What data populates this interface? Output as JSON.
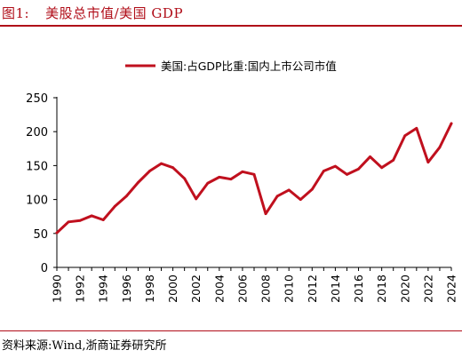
{
  "header": {
    "figure_number": "图1:",
    "title": "美股总市值/美国 GDP"
  },
  "footer": {
    "source": "资料来源:Wind,浙商证券研究所"
  },
  "colors": {
    "accent": "#b00d18",
    "line": "#c0101e",
    "axis": "#000000"
  },
  "chart_data": {
    "type": "line",
    "title": "",
    "xlabel": "",
    "ylabel": "",
    "legend_position": "top-center",
    "grid": false,
    "ylim": [
      0,
      250
    ],
    "yticks": [
      0,
      50,
      100,
      150,
      200,
      250
    ],
    "xlim": [
      1990,
      2024
    ],
    "xticks": [
      1990,
      1992,
      1994,
      1996,
      1998,
      2000,
      2002,
      2004,
      2006,
      2008,
      2010,
      2012,
      2014,
      2016,
      2018,
      2020,
      2022,
      2024
    ],
    "series": [
      {
        "name": "美国:占GDP比重:国内上市公司市值",
        "color": "#c0101e",
        "x": [
          1990,
          1991,
          1992,
          1993,
          1994,
          1995,
          1996,
          1997,
          1998,
          1999,
          2000,
          2001,
          2002,
          2003,
          2004,
          2005,
          2006,
          2007,
          2008,
          2009,
          2010,
          2011,
          2012,
          2013,
          2014,
          2015,
          2016,
          2017,
          2018,
          2019,
          2020,
          2021,
          2022,
          2023,
          2024
        ],
        "values": [
          51,
          67,
          69,
          76,
          70,
          90,
          105,
          125,
          142,
          153,
          147,
          131,
          101,
          124,
          133,
          130,
          141,
          137,
          79,
          105,
          114,
          100,
          115,
          142,
          149,
          137,
          145,
          163,
          147,
          158,
          194,
          205,
          155,
          177,
          212
        ]
      }
    ]
  }
}
